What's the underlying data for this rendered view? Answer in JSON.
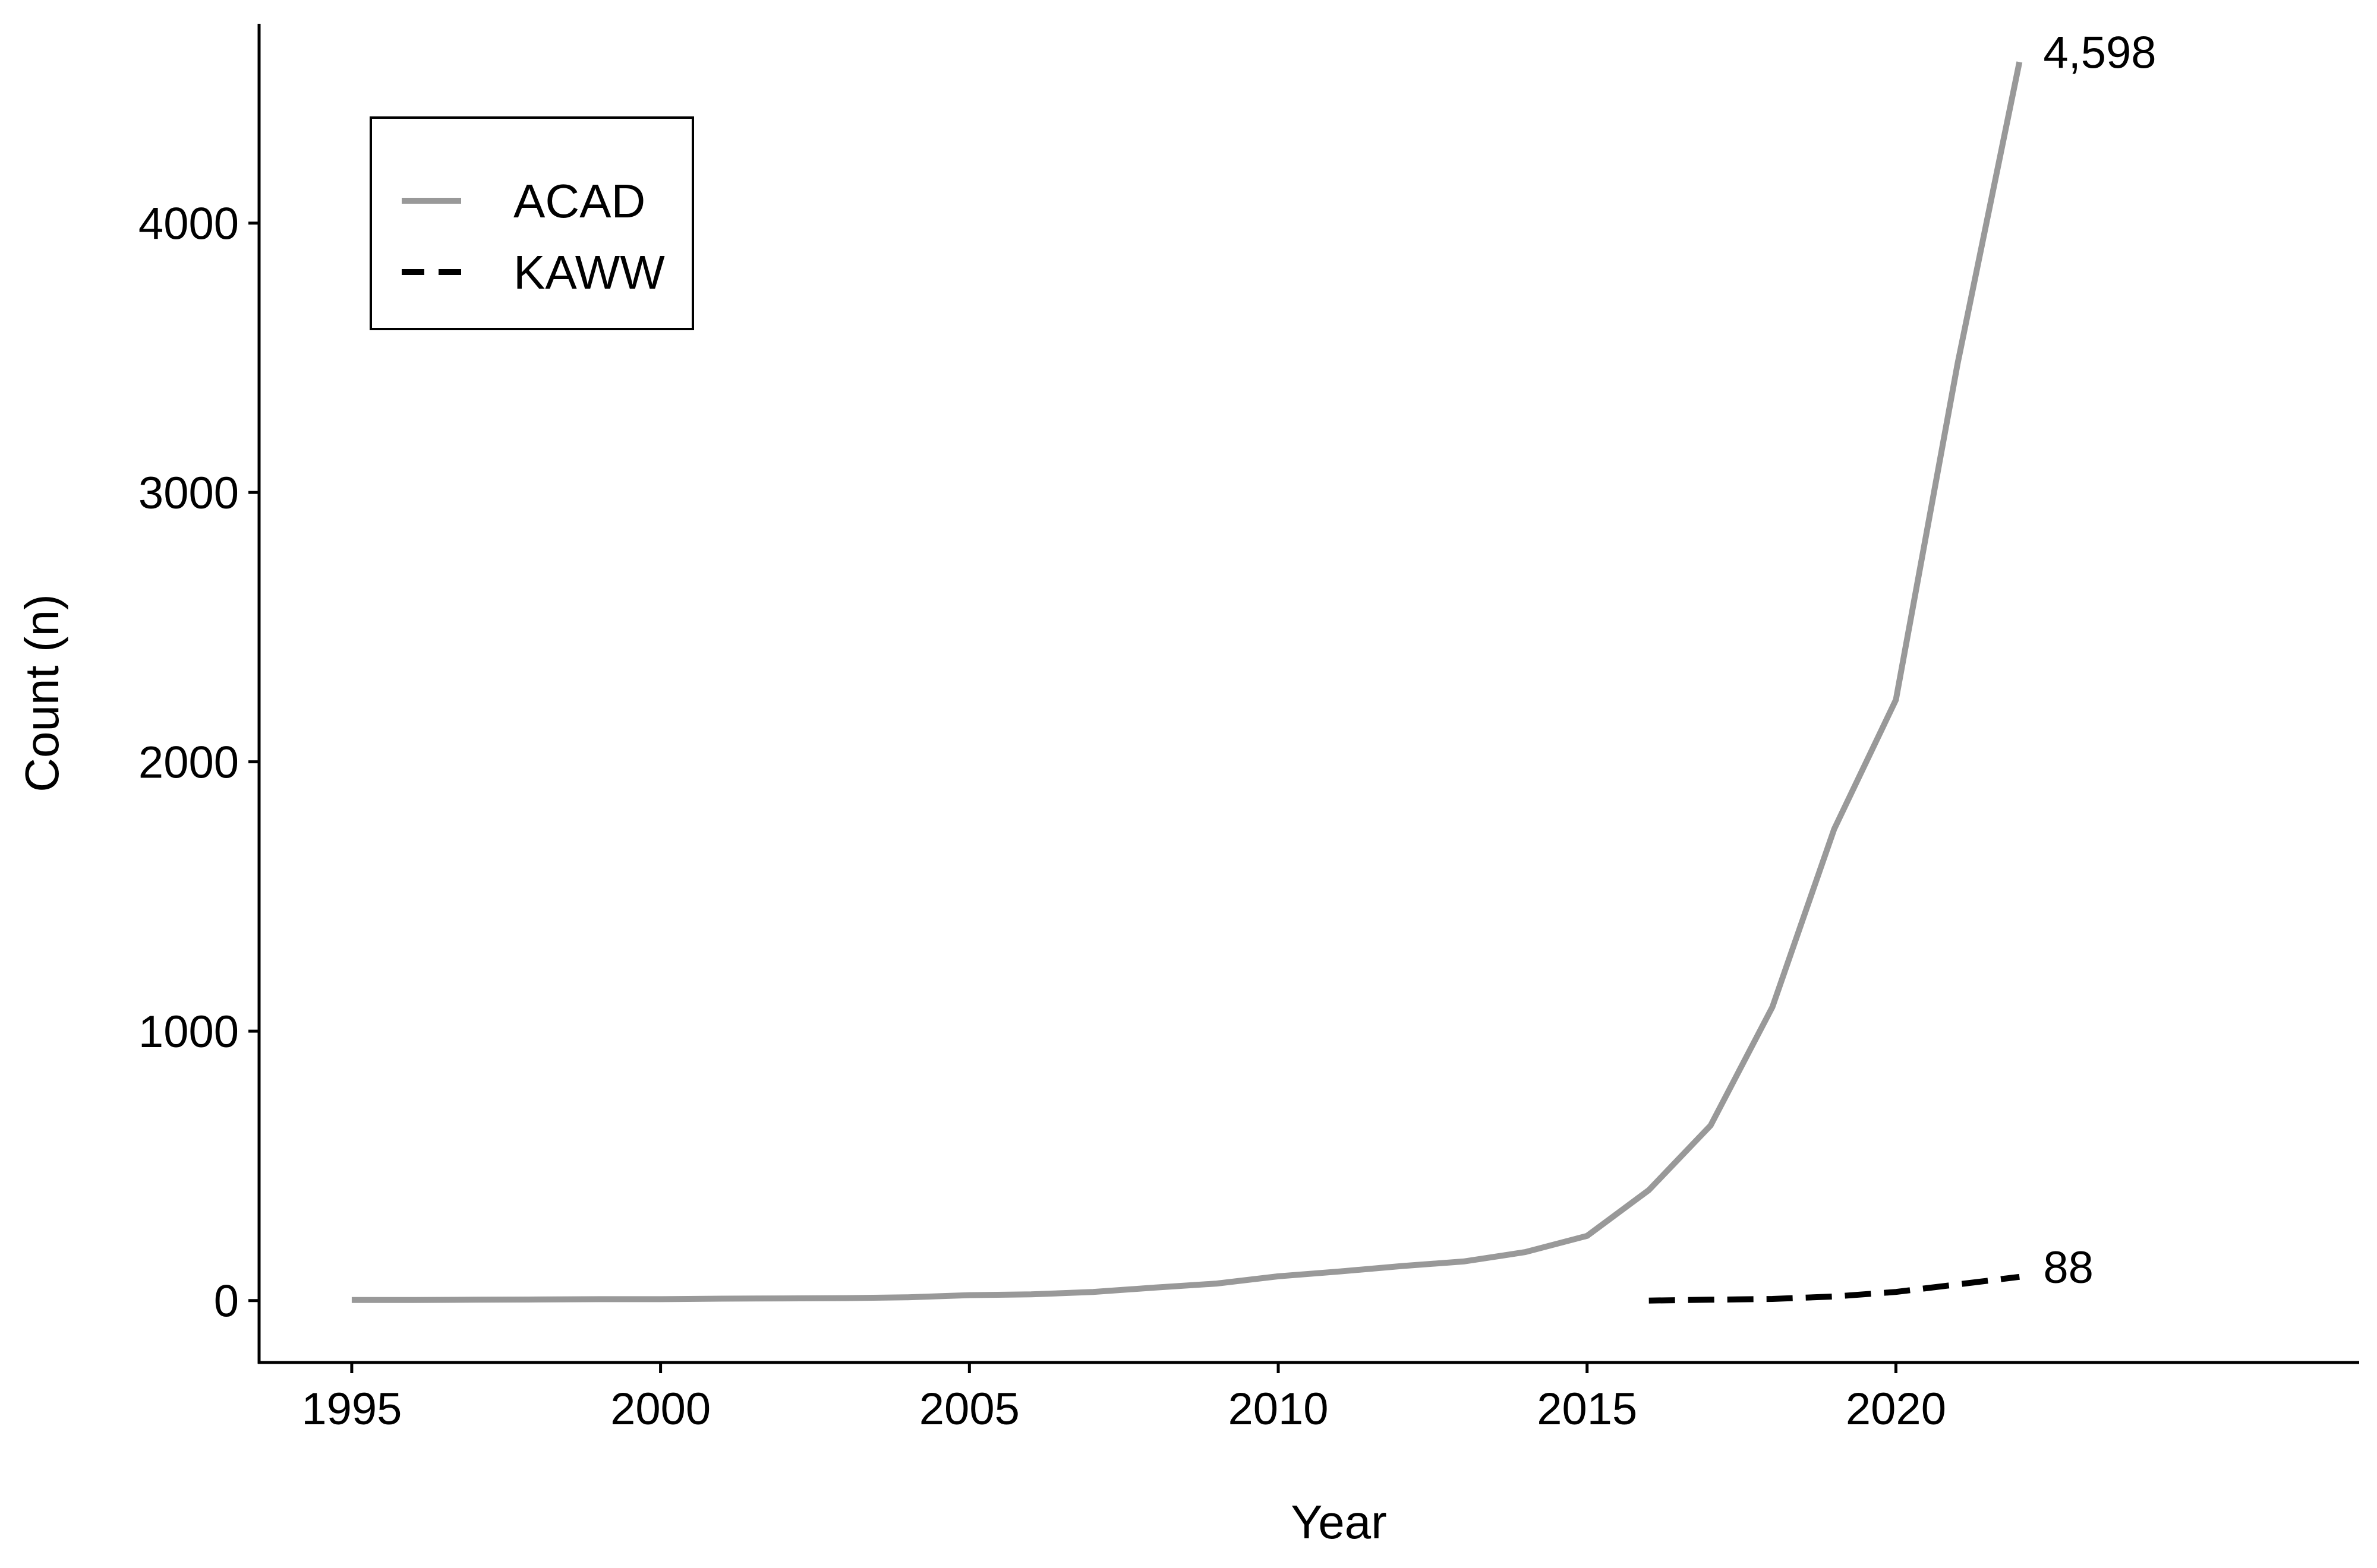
{
  "chart_data": {
    "type": "line",
    "xlabel": "Year",
    "ylabel": "Count (n)",
    "xlim": [
      1993.5,
      2027.5
    ],
    "ylim": [
      -230,
      4740
    ],
    "x_ticks": [
      "1995",
      "2000",
      "2005",
      "2010",
      "2015",
      "2020"
    ],
    "y_ticks": [
      "0",
      "1000",
      "2000",
      "3000",
      "4000"
    ],
    "grid": false,
    "legend_position": "top-left",
    "series": [
      {
        "name": "ACAD",
        "color": "#999999",
        "linetype": "solid",
        "x": [
          1995,
          1996,
          1997,
          1998,
          1999,
          2000,
          2001,
          2002,
          2003,
          2004,
          2005,
          2006,
          2007,
          2008,
          2009,
          2010,
          2011,
          2012,
          2013,
          2014,
          2015,
          2016,
          2017,
          2018,
          2019,
          2020,
          2021,
          2022
        ],
        "y": [
          2,
          2,
          3,
          4,
          5,
          5,
          7,
          8,
          9,
          12,
          20,
          23,
          32,
          48,
          63,
          90,
          108,
          128,
          145,
          180,
          240,
          410,
          650,
          1090,
          1750,
          2230,
          3480,
          4598
        ],
        "end_label": "4,598"
      },
      {
        "name": "KAWW",
        "color": "#000000",
        "linetype": "dashed",
        "x": [
          2016,
          2017,
          2018,
          2019,
          2020,
          2021,
          2022
        ],
        "y": [
          0,
          3,
          6,
          15,
          32,
          60,
          88
        ],
        "end_label": "88"
      }
    ]
  }
}
